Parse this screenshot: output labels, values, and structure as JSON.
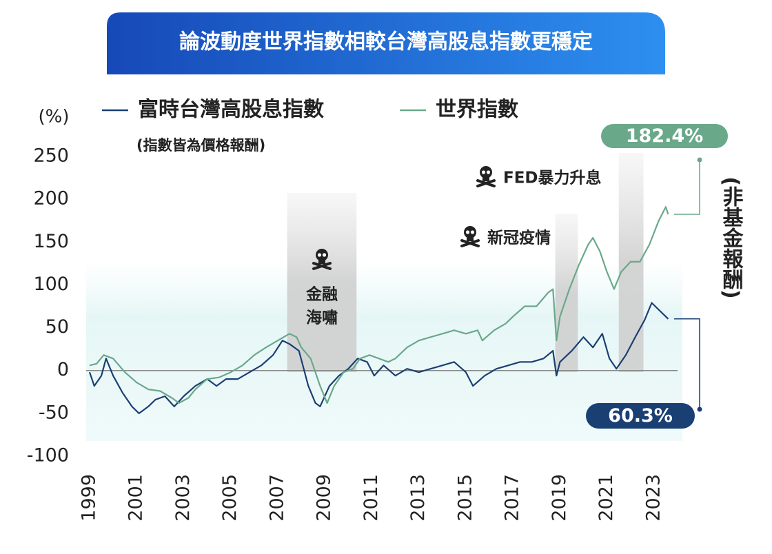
{
  "chart_data": {
    "type": "line",
    "title": "論波動度世界指數相較台灣高股息指數更穩定",
    "y_label": "(%)",
    "note": "(指數皆為價格報酬)",
    "side_note": "(非基金報酬)",
    "xlim": [
      1999,
      2024
    ],
    "xticks": [
      1999,
      2001,
      2003,
      2005,
      2007,
      2009,
      2011,
      2013,
      2015,
      2017,
      2019,
      2021,
      2023
    ],
    "ylim": [
      -100,
      250
    ],
    "yticks": [
      -100,
      -50,
      0,
      50,
      100,
      150,
      200,
      250
    ],
    "grid": false,
    "events": [
      {
        "label_lines": [
          "金融",
          "海嘯"
        ],
        "start": 2007.4,
        "end": 2010.35
      },
      {
        "label_lines": [
          "新冠疫情"
        ],
        "start": 2018.8,
        "end": 2019.76
      },
      {
        "label_lines": [
          "FED暴力升息"
        ],
        "start": 2021.5,
        "end": 2022.55
      }
    ],
    "series": [
      {
        "name": "富時台灣高股息指數",
        "color": "#1a3f73",
        "x": [
          1999,
          1999.2,
          1999.5,
          1999.7,
          2000,
          2000.4,
          2000.8,
          2001.1,
          2001.5,
          2001.8,
          2002.2,
          2002.6,
          2003,
          2003.5,
          2004,
          2004.4,
          2004.8,
          2005.3,
          2005.8,
          2006.3,
          2006.8,
          2007.2,
          2007.5,
          2007.9,
          2008.3,
          2008.6,
          2008.8,
          2009.2,
          2009.6,
          2010,
          2010.4,
          2010.8,
          2011.1,
          2011.5,
          2012,
          2012.5,
          2013,
          2013.5,
          2014,
          2014.5,
          2015,
          2015.3,
          2015.8,
          2016.3,
          2016.8,
          2017.3,
          2017.8,
          2018.3,
          2018.7,
          2018.85,
          2019,
          2019.5,
          2020,
          2020.4,
          2020.8,
          2021.1,
          2021.4,
          2021.8,
          2022.2,
          2022.6,
          2022.9,
          2023.2,
          2023.6
        ],
        "values": [
          -2,
          -18,
          -6,
          14,
          -6,
          -26,
          -42,
          -50,
          -42,
          -34,
          -30,
          -42,
          -30,
          -18,
          -10,
          -18,
          -10,
          -10,
          -2,
          6,
          18,
          35,
          31,
          23,
          -18,
          -38,
          -42,
          -18,
          -6,
          2,
          14,
          10,
          -6,
          6,
          -6,
          2,
          -2,
          2,
          6,
          10,
          -2,
          -18,
          -6,
          2,
          6,
          10,
          10,
          14,
          23,
          -6,
          10,
          23,
          39,
          27,
          43,
          14,
          2,
          18,
          39,
          59,
          79,
          71,
          60.3
        ],
        "end_label": "60.3%"
      },
      {
        "name": "世界指數",
        "color": "#6aa88a",
        "x": [
          1999,
          1999.3,
          1999.6,
          2000,
          2000.5,
          2001,
          2001.5,
          2002,
          2002.5,
          2002.8,
          2003.2,
          2003.5,
          2004,
          2004.5,
          2005,
          2005.5,
          2006,
          2006.5,
          2007,
          2007.5,
          2007.8,
          2008,
          2008.4,
          2008.8,
          2009.1,
          2009.4,
          2009.8,
          2010.2,
          2010.5,
          2010.9,
          2011.3,
          2011.7,
          2012,
          2012.5,
          2013,
          2013.5,
          2014,
          2014.5,
          2015,
          2015.5,
          2015.7,
          2016.2,
          2016.7,
          2017,
          2017.5,
          2018,
          2018.5,
          2018.7,
          2018.85,
          2019,
          2019.4,
          2019.8,
          2020.2,
          2020.4,
          2020.7,
          2021,
          2021.3,
          2021.6,
          2022,
          2022.4,
          2022.8,
          2023.2,
          2023.5,
          2023.6
        ],
        "values": [
          6,
          8,
          18,
          14,
          -2,
          -14,
          -22,
          -24,
          -32,
          -38,
          -32,
          -22,
          -10,
          -8,
          -2,
          6,
          18,
          27,
          35,
          43,
          39,
          27,
          14,
          -18,
          -38,
          -18,
          -2,
          2,
          14,
          18,
          14,
          10,
          14,
          27,
          35,
          39,
          43,
          47,
          43,
          47,
          35,
          47,
          55,
          63,
          75,
          75,
          91,
          95,
          35,
          63,
          95,
          123,
          147,
          155,
          139,
          115,
          95,
          115,
          127,
          127,
          147,
          175,
          191,
          182.4
        ],
        "end_label": "182.4%"
      }
    ]
  }
}
